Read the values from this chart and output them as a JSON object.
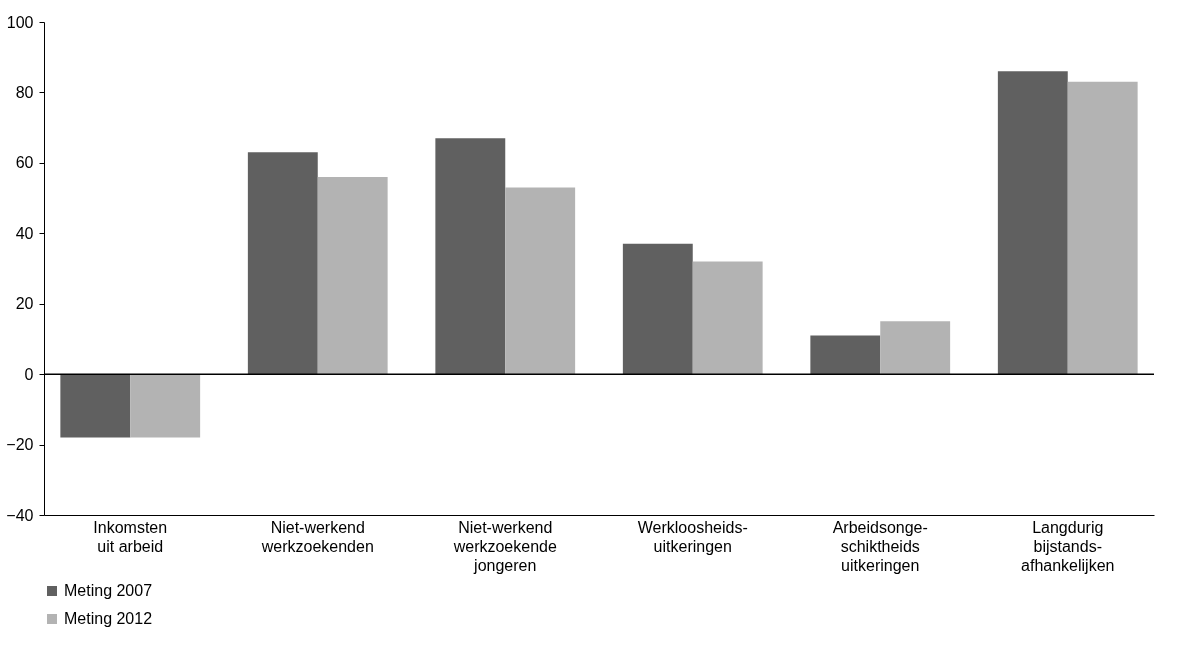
{
  "chart_data": {
    "type": "bar",
    "categories": [
      "Inkomsten\nuit arbeid",
      "Niet-werkend\nwerkzoekenden",
      "Niet-werkend\nwerkzoekende\njongeren",
      "Werkloosheids-\nuitkeringen",
      "Arbeidsonge-\nschiktheids\nuitkeringen",
      "Langdurig\nbijstands-\nafhankelijken"
    ],
    "series": [
      {
        "name": "Meting 2007",
        "color": "#606060",
        "values": [
          -18,
          63,
          67,
          37,
          11,
          86
        ]
      },
      {
        "name": "Meting 2012",
        "color": "#b3b3b3",
        "values": [
          -18,
          56,
          53,
          32,
          15,
          83
        ]
      }
    ],
    "ylim": [
      -40,
      100
    ],
    "yticks": [
      -40,
      -20,
      0,
      20,
      40,
      60,
      80,
      100
    ],
    "legend": "bottom left"
  }
}
